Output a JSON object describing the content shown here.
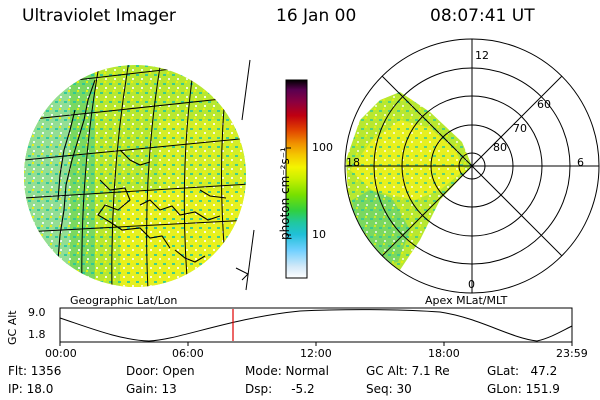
{
  "header": {
    "title": "Ultraviolet Imager",
    "date": "16 Jan 00",
    "time": "08:07:41 UT"
  },
  "geo_panel": {
    "label": "Geographic Lat/Lon"
  },
  "colorbar": {
    "unit_label": "photon cm⁻²s⁻¹",
    "tick_100": "100",
    "tick_10": "10",
    "colors": [
      "#000000",
      "#5a0050",
      "#8a0040",
      "#c00010",
      "#e04000",
      "#f09000",
      "#f4c800",
      "#f4f400",
      "#c8f000",
      "#78e000",
      "#30d040",
      "#20c8a0",
      "#20c0d8",
      "#70d0ff",
      "#d0e8f8",
      "#ffffff"
    ]
  },
  "polar_panel": {
    "label": "Apex  MLat/MLT",
    "mlt_labels": [
      "12",
      "18",
      "6",
      "0"
    ],
    "lat_labels": [
      "60",
      "70",
      "80"
    ]
  },
  "orbit": {
    "ylabel": "GC Alt",
    "y_top": "9.0",
    "y_bottom": "1.8",
    "x_ticks": [
      "00:00",
      "06:00",
      "12:00",
      "18:00",
      "23:59"
    ],
    "marker_time": "08:07",
    "marker_color": "#e00000"
  },
  "info": {
    "flt": "Flt: 1356",
    "ip": "IP: 18.0",
    "door": "Door: Open",
    "gain": "Gain: 13",
    "mode": "Mode: Normal",
    "dsp": "Dsp:     -5.2",
    "gcalt": "GC Alt: 7.1 Re",
    "seq": "Seq: 30",
    "glat": "GLat:   47.2",
    "glon": "GLon: 151.9"
  }
}
